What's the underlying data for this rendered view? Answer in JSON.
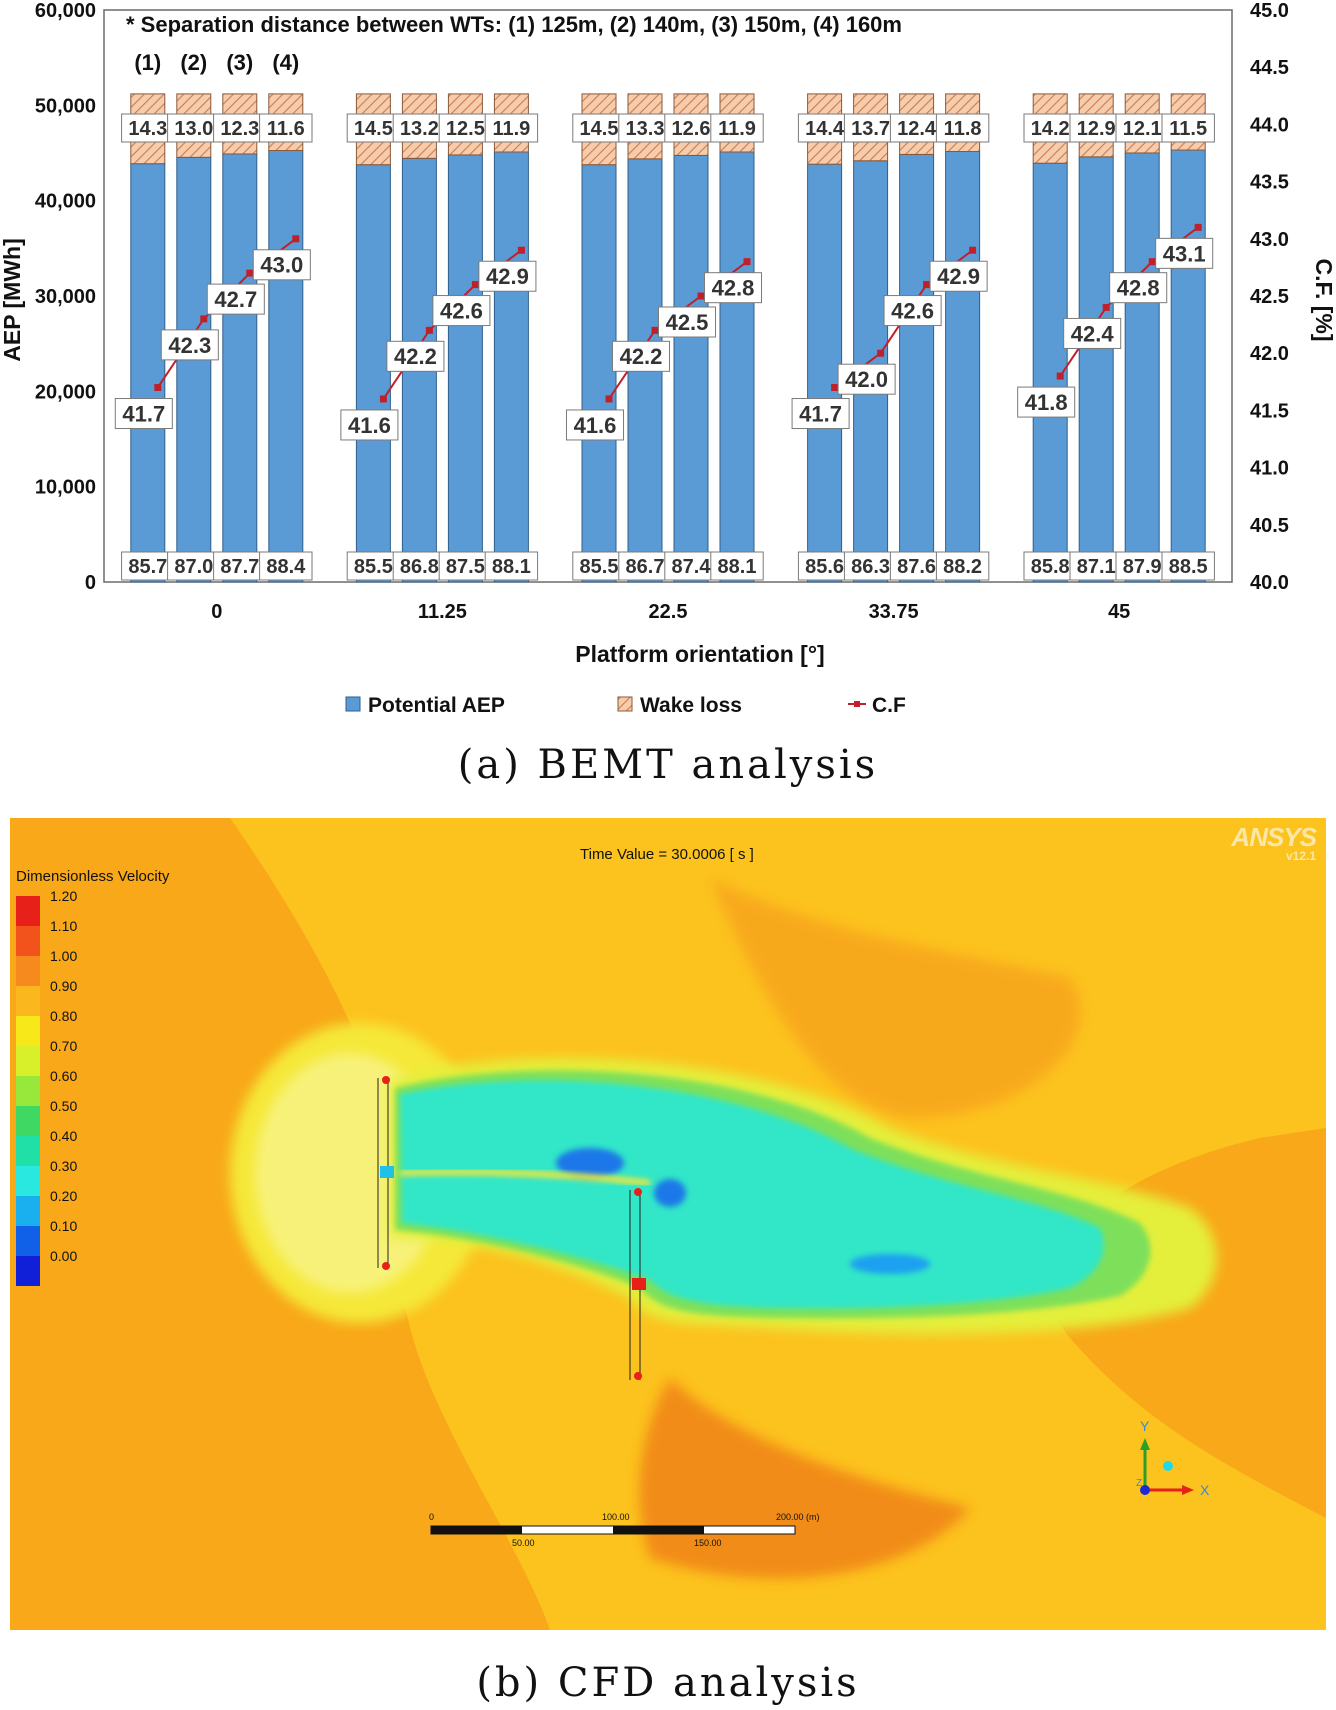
{
  "chart_data": {
    "type": "bar",
    "note": "* Separation distance between WTs: (1) 125m, (2) 140m, (3) 150m, (4) 160m",
    "group_labels": [
      "(1)",
      "(2)",
      "(3)",
      "(4)"
    ],
    "categories": [
      "0",
      "11.25",
      "22.5",
      "33.75",
      "45"
    ],
    "xlabel": "Platform orientation [°]",
    "ylabel": "AEP [MWh]",
    "y2label": "C.F. [%]",
    "ylim": [
      0,
      60000
    ],
    "y2lim": [
      40.0,
      45.0
    ],
    "yticks": [
      "0",
      "10,000",
      "20,000",
      "30,000",
      "40,000",
      "50,000",
      "60,000"
    ],
    "y2ticks": [
      "40.0",
      "40.5",
      "41.0",
      "41.5",
      "42.0",
      "42.5",
      "43.0",
      "43.5",
      "44.0",
      "44.5",
      "45.0"
    ],
    "series": [
      {
        "name": "Potential AEP",
        "labels": [
          [
            "85.7",
            "87.0",
            "87.7",
            "88.4"
          ],
          [
            "85.5",
            "86.8",
            "87.5",
            "88.1"
          ],
          [
            "85.5",
            "86.7",
            "87.4",
            "88.1"
          ],
          [
            "85.6",
            "86.3",
            "87.6",
            "88.2"
          ],
          [
            "85.8",
            "87.1",
            "87.9",
            "88.5"
          ]
        ]
      },
      {
        "name": "Wake loss",
        "labels": [
          [
            "14.3",
            "13.0",
            "12.3",
            "11.6"
          ],
          [
            "14.5",
            "13.2",
            "12.5",
            "11.9"
          ],
          [
            "14.5",
            "13.3",
            "12.6",
            "11.9"
          ],
          [
            "14.4",
            "13.7",
            "12.4",
            "11.8"
          ],
          [
            "14.2",
            "12.9",
            "12.1",
            "11.5"
          ]
        ]
      },
      {
        "name": "C.F",
        "values": [
          [
            41.7,
            42.3,
            42.7,
            43.0
          ],
          [
            41.6,
            42.2,
            42.6,
            42.9
          ],
          [
            41.6,
            42.2,
            42.5,
            42.8
          ],
          [
            41.7,
            42.0,
            42.6,
            42.9
          ],
          [
            41.8,
            42.4,
            42.8,
            43.1
          ]
        ]
      }
    ],
    "total_aep": 51200,
    "colors": {
      "potential": "#5b9bd5",
      "potential_edge": "#2f5f8a",
      "wake": "#f6ccab",
      "wake_hatch": "#c97b55",
      "cf": "#c0202a"
    },
    "legend_position": "bottom"
  },
  "captions": {
    "a": "(a) BEMT analysis",
    "b": "(b) CFD analysis"
  },
  "cfd": {
    "time_value": "Time Value = 30.0006 [ s ]",
    "legend_title": "Dimensionless Velocity",
    "colorbar_labels": [
      "1.20",
      "1.10",
      "1.00",
      "0.90",
      "0.80",
      "0.70",
      "0.60",
      "0.50",
      "0.40",
      "0.30",
      "0.20",
      "0.10",
      "0.00"
    ],
    "colorbar_colors": [
      "#e8201a",
      "#f2521c",
      "#f78a1e",
      "#fbb81e",
      "#f7e81a",
      "#d8f02a",
      "#98e83c",
      "#3ed862",
      "#20e0a8",
      "#28e8e0",
      "#1ab0f0",
      "#1060e8",
      "#1020d8"
    ],
    "brand": "ANSYS",
    "version": "v12.1",
    "scale_labels_top": [
      "0",
      "100.00",
      "200.00 (m)"
    ],
    "scale_labels_bottom": [
      "50.00",
      "150.00"
    ],
    "axis_y": "Y",
    "axis_x": "X",
    "axis_z": "Z"
  }
}
